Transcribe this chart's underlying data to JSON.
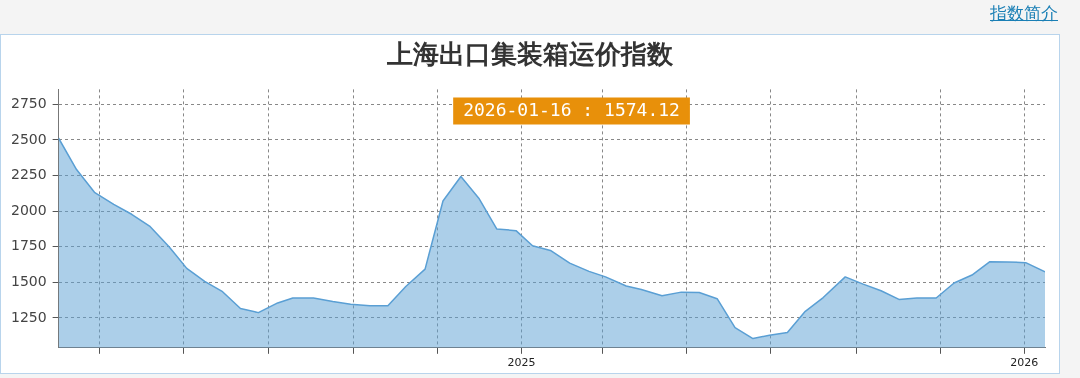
{
  "chart_data": {
    "type": "area",
    "title": "上海出口集装箱运价指数",
    "annotations": [
      "2026-01-16 : 1574.12",
      "指数简介"
    ],
    "x": [
      "2024-01-31",
      "2024-02-13",
      "2024-02-26",
      "2024-03-11",
      "2024-03-24",
      "2024-04-06",
      "2024-04-20",
      "2024-05-03",
      "2024-05-16",
      "2024-05-29",
      "2024-06-11",
      "2024-06-24",
      "2024-07-08",
      "2024-07-19",
      "2024-08-03",
      "2024-08-17",
      "2024-08-30",
      "2024-09-13",
      "2024-09-26",
      "2024-10-09",
      "2024-10-23",
      "2024-11-05",
      "2024-11-18",
      "2024-12-01",
      "2024-12-14",
      "2024-12-28",
      "2025-01-09",
      "2025-01-22",
      "2025-02-05",
      "2025-02-19",
      "2025-03-03",
      "2025-03-18",
      "2025-03-29",
      "2025-04-13",
      "2025-04-27",
      "2025-05-10",
      "2025-05-23",
      "2025-06-05",
      "2025-06-18",
      "2025-06-30",
      "2025-07-13",
      "2025-07-26",
      "2025-08-08",
      "2025-08-24",
      "2025-09-06",
      "2025-09-19",
      "2025-10-02",
      "2025-10-15",
      "2025-10-29",
      "2025-11-11",
      "2025-11-24",
      "2025-12-07",
      "2025-12-20",
      "2026-01-02",
      "2026-01-16"
    ],
    "series": [
      {
        "color": "#5a9fd4",
        "values": [
          2512,
          2292,
          2132,
          2047,
          1978,
          1895,
          1752,
          1598,
          1507,
          1434,
          1316,
          1287,
          1355,
          1390,
          1390,
          1365,
          1346,
          1336,
          1336,
          1471,
          1593,
          2071,
          2243,
          2091,
          1875,
          1863,
          1757,
          1724,
          1635,
          1577,
          1538,
          1474,
          1449,
          1406,
          1431,
          1429,
          1385,
          1181,
          1105,
          1128,
          1148,
          1296,
          1393,
          1538,
          1487,
          1441,
          1380,
          1390,
          1390,
          1495,
          1551,
          1645,
          1643,
          1638,
          1574
        ]
      }
    ],
    "xlim": [
      "2024-01-31",
      "2026-01-16"
    ],
    "xticks": [
      {
        "value": "2024-03-01",
        "label": null
      },
      {
        "value": "2024-05-01",
        "label": null
      },
      {
        "value": "2024-07-01",
        "label": null
      },
      {
        "value": "2024-09-01",
        "label": null
      },
      {
        "value": "2024-11-01",
        "label": null
      },
      {
        "value": "2025-01-01",
        "label": "2025"
      },
      {
        "value": "2025-03-01",
        "label": null
      },
      {
        "value": "2025-05-01",
        "label": null
      },
      {
        "value": "2025-07-01",
        "label": null
      },
      {
        "value": "2025-09-01",
        "label": null
      },
      {
        "value": "2025-11-01",
        "label": null
      },
      {
        "value": "2026-01-01",
        "label": "2026"
      }
    ],
    "ylim": [
      1040,
      2855
    ],
    "yticks": [
      1250,
      1500,
      1750,
      2000,
      2250,
      2500,
      2750
    ],
    "grid": true,
    "legend": false,
    "marker": "none",
    "line_style": "solid"
  }
}
